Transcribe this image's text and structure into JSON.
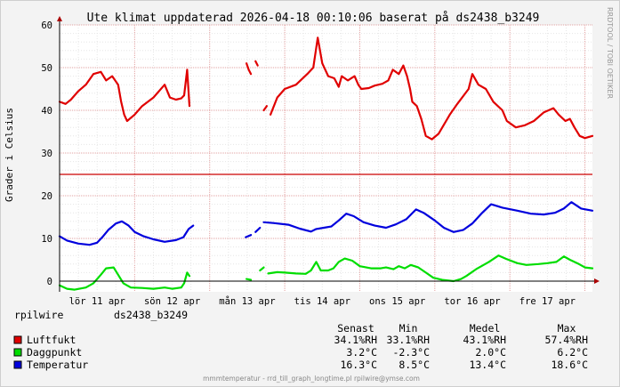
{
  "chart_data": {
    "type": "line",
    "title": "Ute klimat uppdaterad 2026-04-18 00:10:06 baserat på ds2438_b3249",
    "ylabel": "Grader i Celsius",
    "xlabel": "",
    "watermark": "RRDTOOL / TOBI OETIKER",
    "footer": "mmmtemperatur - rrd_till_graph_longtime.pl rpilwire@ymse.com",
    "ylim": [
      -2.5,
      60
    ],
    "yticks": [
      0,
      10,
      20,
      30,
      40,
      50,
      60
    ],
    "x_days": [
      0,
      7.1
    ],
    "x_ticks": [
      {
        "label": "lör 11 apr",
        "x": 0.5
      },
      {
        "label": "sön 12 apr",
        "x": 1.5
      },
      {
        "label": "mån 13 apr",
        "x": 2.5
      },
      {
        "label": "tis 14 apr",
        "x": 3.5
      },
      {
        "label": "ons 15 apr",
        "x": 4.5
      },
      {
        "label": "tor 16 apr",
        "x": 5.5
      },
      {
        "label": "fre 17 apr",
        "x": 6.5
      }
    ],
    "threshold": {
      "value": 25,
      "color": "#cc0000"
    },
    "grid": true,
    "series": [
      {
        "name": "Luftfukt",
        "color": "#e00000",
        "segments": [
          [
            [
              0.0,
              42
            ],
            [
              0.08,
              41.5
            ],
            [
              0.15,
              42.5
            ],
            [
              0.25,
              44.5
            ],
            [
              0.35,
              46
            ],
            [
              0.45,
              48.5
            ],
            [
              0.55,
              49
            ],
            [
              0.62,
              47
            ],
            [
              0.7,
              48
            ],
            [
              0.78,
              46
            ],
            [
              0.82,
              42
            ],
            [
              0.86,
              39
            ],
            [
              0.9,
              37.5
            ],
            [
              1.0,
              39
            ],
            [
              1.1,
              41
            ],
            [
              1.25,
              43
            ],
            [
              1.4,
              46
            ],
            [
              1.47,
              43
            ],
            [
              1.55,
              42.5
            ],
            [
              1.62,
              42.8
            ],
            [
              1.66,
              43.5
            ],
            [
              1.7,
              49.5
            ],
            [
              1.73,
              41
            ]
          ],
          [
            [
              2.49,
              51
            ],
            [
              2.52,
              49.5
            ],
            [
              2.55,
              48.5
            ]
          ],
          [
            [
              2.61,
              51.5
            ],
            [
              2.64,
              50.5
            ]
          ],
          [
            [
              2.72,
              40
            ],
            [
              2.76,
              41
            ]
          ],
          [
            [
              2.81,
              39
            ],
            [
              2.9,
              43
            ],
            [
              3.0,
              45
            ],
            [
              3.15,
              46
            ],
            [
              3.3,
              48.5
            ],
            [
              3.38,
              50
            ],
            [
              3.44,
              57
            ],
            [
              3.5,
              51
            ],
            [
              3.58,
              48
            ],
            [
              3.66,
              47.5
            ],
            [
              3.72,
              45.5
            ],
            [
              3.76,
              48
            ],
            [
              3.84,
              47
            ],
            [
              3.93,
              48
            ],
            [
              3.98,
              46
            ],
            [
              4.02,
              45
            ],
            [
              4.12,
              45.2
            ],
            [
              4.2,
              45.8
            ],
            [
              4.3,
              46.2
            ],
            [
              4.38,
              47
            ],
            [
              4.44,
              49.5
            ],
            [
              4.52,
              48.5
            ],
            [
              4.58,
              50.5
            ],
            [
              4.63,
              48
            ],
            [
              4.67,
              45
            ],
            [
              4.7,
              42
            ],
            [
              4.76,
              41
            ],
            [
              4.82,
              38
            ],
            [
              4.88,
              34
            ],
            [
              4.96,
              33.2
            ],
            [
              5.05,
              34.5
            ],
            [
              5.2,
              39
            ],
            [
              5.3,
              41.5
            ],
            [
              5.45,
              45
            ],
            [
              5.5,
              48.5
            ],
            [
              5.58,
              46
            ],
            [
              5.68,
              45
            ],
            [
              5.78,
              42
            ],
            [
              5.9,
              40
            ],
            [
              5.96,
              37.5
            ],
            [
              6.08,
              36
            ],
            [
              6.2,
              36.5
            ],
            [
              6.32,
              37.5
            ],
            [
              6.45,
              39.5
            ],
            [
              6.58,
              40.5
            ],
            [
              6.65,
              39
            ],
            [
              6.74,
              37.5
            ],
            [
              6.8,
              38
            ],
            [
              6.86,
              36
            ],
            [
              6.93,
              34
            ],
            [
              7.0,
              33.5
            ],
            [
              7.1,
              34
            ]
          ]
        ]
      },
      {
        "name": "Daggpunkt",
        "color": "#00dd00",
        "segments": [
          [
            [
              0.0,
              -1
            ],
            [
              0.1,
              -1.8
            ],
            [
              0.2,
              -2
            ],
            [
              0.35,
              -1.5
            ],
            [
              0.45,
              -0.5
            ],
            [
              0.55,
              1.5
            ],
            [
              0.62,
              3
            ],
            [
              0.72,
              3.2
            ],
            [
              0.78,
              1.5
            ],
            [
              0.85,
              -0.5
            ],
            [
              0.95,
              -1.5
            ],
            [
              1.1,
              -1.6
            ],
            [
              1.25,
              -1.8
            ],
            [
              1.4,
              -1.5
            ],
            [
              1.5,
              -1.8
            ],
            [
              1.62,
              -1.5
            ],
            [
              1.66,
              -0.5
            ],
            [
              1.7,
              2
            ],
            [
              1.73,
              1.2
            ]
          ],
          [
            [
              2.49,
              0.5
            ],
            [
              2.55,
              0.3
            ]
          ],
          [
            [
              2.67,
              2.5
            ],
            [
              2.72,
              3.2
            ]
          ],
          [
            [
              2.78,
              1.8
            ],
            [
              2.9,
              2.1
            ],
            [
              3.0,
              2
            ],
            [
              3.15,
              1.8
            ],
            [
              3.28,
              1.7
            ],
            [
              3.35,
              2.5
            ],
            [
              3.42,
              4.5
            ],
            [
              3.48,
              2.5
            ],
            [
              3.58,
              2.5
            ],
            [
              3.65,
              3
            ],
            [
              3.72,
              4.5
            ],
            [
              3.8,
              5.3
            ],
            [
              3.9,
              4.8
            ],
            [
              4.0,
              3.5
            ],
            [
              4.15,
              3
            ],
            [
              4.28,
              3
            ],
            [
              4.35,
              3.2
            ],
            [
              4.45,
              2.8
            ],
            [
              4.52,
              3.5
            ],
            [
              4.6,
              3
            ],
            [
              4.68,
              3.8
            ],
            [
              4.78,
              3.2
            ],
            [
              4.88,
              2
            ],
            [
              4.98,
              0.8
            ],
            [
              5.1,
              0.3
            ],
            [
              5.25,
              0
            ],
            [
              5.35,
              0.5
            ],
            [
              5.42,
              1.2
            ],
            [
              5.55,
              2.8
            ],
            [
              5.72,
              4.5
            ],
            [
              5.85,
              6
            ],
            [
              5.95,
              5.2
            ],
            [
              6.1,
              4.2
            ],
            [
              6.22,
              3.8
            ],
            [
              6.38,
              4
            ],
            [
              6.5,
              4.2
            ],
            [
              6.62,
              4.5
            ],
            [
              6.72,
              5.8
            ],
            [
              6.8,
              5
            ],
            [
              6.92,
              4
            ],
            [
              7.0,
              3.2
            ],
            [
              7.1,
              3
            ]
          ]
        ]
      },
      {
        "name": "Temperatur",
        "color": "#0000dd",
        "segments": [
          [
            [
              0.0,
              10.5
            ],
            [
              0.1,
              9.5
            ],
            [
              0.25,
              8.8
            ],
            [
              0.4,
              8.5
            ],
            [
              0.5,
              9
            ],
            [
              0.58,
              10.5
            ],
            [
              0.65,
              12
            ],
            [
              0.75,
              13.5
            ],
            [
              0.83,
              14
            ],
            [
              0.92,
              13
            ],
            [
              1.0,
              11.5
            ],
            [
              1.12,
              10.5
            ],
            [
              1.25,
              9.8
            ],
            [
              1.4,
              9.2
            ],
            [
              1.55,
              9.6
            ],
            [
              1.65,
              10.3
            ],
            [
              1.72,
              12.2
            ],
            [
              1.78,
              13
            ]
          ],
          [
            [
              2.48,
              10.3
            ],
            [
              2.55,
              10.8
            ]
          ],
          [
            [
              2.61,
              11.5
            ],
            [
              2.67,
              12.5
            ]
          ],
          [
            [
              2.72,
              13.8
            ],
            [
              2.85,
              13.6
            ],
            [
              3.05,
              13.2
            ],
            [
              3.2,
              12.3
            ],
            [
              3.35,
              11.6
            ],
            [
              3.42,
              12.2
            ],
            [
              3.52,
              12.5
            ],
            [
              3.62,
              12.8
            ],
            [
              3.72,
              14.2
            ],
            [
              3.82,
              15.8
            ],
            [
              3.92,
              15.2
            ],
            [
              4.05,
              13.8
            ],
            [
              4.2,
              13
            ],
            [
              4.35,
              12.5
            ],
            [
              4.48,
              13.3
            ],
            [
              4.62,
              14.5
            ],
            [
              4.75,
              16.8
            ],
            [
              4.85,
              16
            ],
            [
              5.0,
              14.2
            ],
            [
              5.12,
              12.5
            ],
            [
              5.25,
              11.5
            ],
            [
              5.38,
              12
            ],
            [
              5.5,
              13.5
            ],
            [
              5.62,
              15.8
            ],
            [
              5.75,
              18
            ],
            [
              5.9,
              17.2
            ],
            [
              6.1,
              16.5
            ],
            [
              6.28,
              15.8
            ],
            [
              6.45,
              15.6
            ],
            [
              6.6,
              16
            ],
            [
              6.72,
              17
            ],
            [
              6.82,
              18.5
            ],
            [
              6.95,
              17
            ],
            [
              7.1,
              16.5
            ]
          ]
        ]
      }
    ],
    "legend": {
      "host": "rpilwire",
      "sensor": "ds2438_b3249",
      "columns": [
        "Senast",
        "Min",
        "Medel",
        "Max"
      ],
      "rows": [
        {
          "name": "Luftfukt",
          "color": "#e00000",
          "values": [
            "34.1%RH",
            "33.1%RH",
            "43.1%RH",
            "57.4%RH"
          ]
        },
        {
          "name": "Daggpunkt",
          "color": "#00dd00",
          "values": [
            "3.2°C",
            "-2.3°C",
            "2.0°C",
            "6.2°C"
          ]
        },
        {
          "name": "Temperatur",
          "color": "#0000dd",
          "values": [
            "16.3°C",
            "8.5°C",
            "13.4°C",
            "18.6°C"
          ]
        }
      ]
    }
  }
}
